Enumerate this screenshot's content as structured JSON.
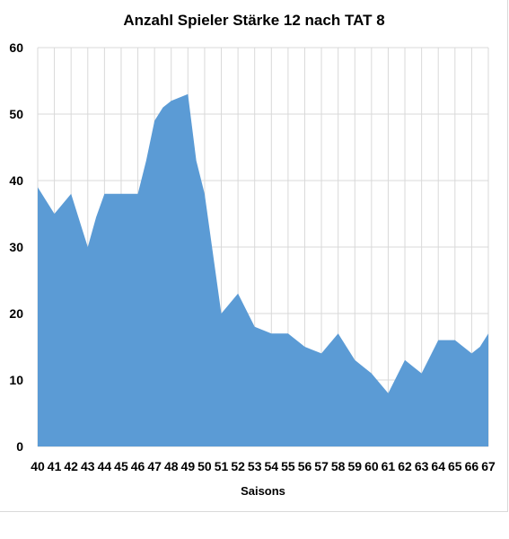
{
  "chart_data": {
    "type": "area",
    "title": "Anzahl Spieler Stärke 12 nach TAT 8",
    "xlabel": "Saisons",
    "ylabel": "",
    "ylim": [
      0,
      60
    ],
    "yticks": [
      0,
      10,
      20,
      30,
      40,
      50,
      60
    ],
    "grid": true,
    "legend": "none",
    "colors": {
      "area": "#5b9bd5",
      "grid": "#d9d9d9"
    },
    "categories": [
      "40",
      "41",
      "42",
      "43",
      "44",
      "45",
      "46",
      "47",
      "48",
      "49",
      "50",
      "51",
      "52",
      "53",
      "54",
      "55",
      "56",
      "57",
      "58",
      "59",
      "60",
      "61",
      "62",
      "63",
      "64",
      "65",
      "66",
      "67"
    ],
    "x": [
      40,
      40.5,
      41,
      41.5,
      42,
      42.5,
      43,
      43.5,
      44,
      44.5,
      45,
      45.5,
      46,
      46.5,
      47,
      47.5,
      48,
      48.5,
      49,
      49.5,
      50,
      50.5,
      51,
      51.5,
      52,
      52.5,
      53,
      53.5,
      54,
      54.5,
      55,
      55.5,
      56,
      56.5,
      57,
      57.5,
      58,
      58.5,
      59,
      59.5,
      60,
      60.5,
      61,
      61.5,
      62,
      62.5,
      63,
      63.5,
      64,
      64.5,
      65,
      65.5,
      66,
      66.5,
      67
    ],
    "values": [
      39,
      37,
      35,
      36.5,
      38,
      34,
      30,
      34.5,
      38,
      38,
      38,
      38,
      38,
      43,
      49,
      51,
      52,
      52.5,
      53,
      43,
      38,
      29,
      20,
      21.5,
      23,
      20.5,
      18,
      17.5,
      17,
      17,
      17,
      16,
      15,
      14.5,
      14,
      15.5,
      17,
      15,
      13,
      12,
      11,
      9.5,
      8,
      10.5,
      13,
      12,
      11,
      13.5,
      16,
      16,
      16,
      15,
      14,
      15,
      17
    ]
  }
}
